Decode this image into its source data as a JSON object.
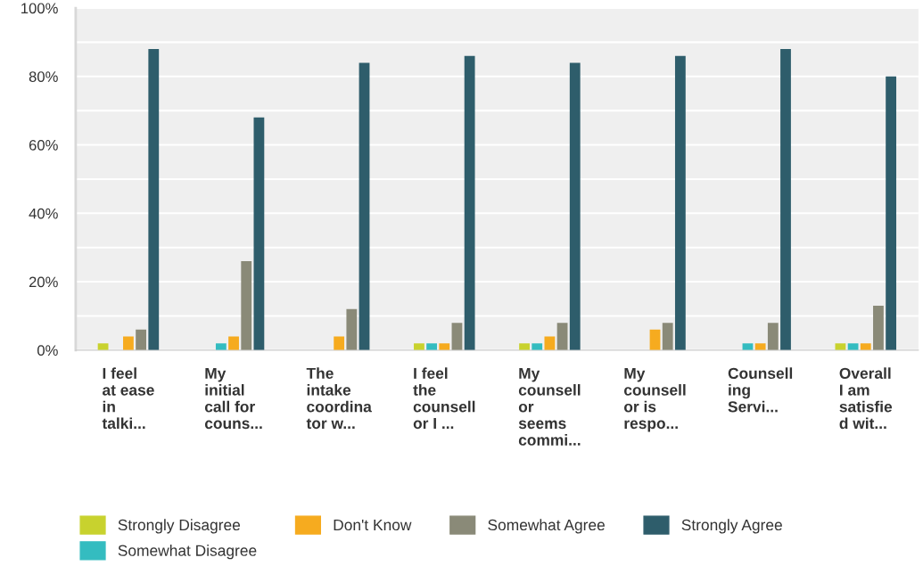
{
  "chart_data": {
    "type": "bar",
    "categories": [
      "I feel\nat ease\nin\ntalki...",
      "My\ninitial\ncall for\ncouns...",
      "The\nintake\ncoordina\ntor w...",
      "I feel\nthe\ncounsell\nor I ...",
      "My\ncounsell\nor\nseems\ncommi...",
      "My\ncounsell\nor is\nrespo...",
      "Counsell\ning\nServi...",
      "Overall\nI am\nsatisfie\nd wit..."
    ],
    "series": [
      {
        "name": "Strongly Disagree",
        "color": "#c8d22e",
        "values": [
          2,
          0,
          0,
          2,
          2,
          0,
          0,
          2
        ]
      },
      {
        "name": "Somewhat Disagree",
        "color": "#34bcc0",
        "values": [
          0,
          2,
          0,
          2,
          2,
          0,
          2,
          2
        ]
      },
      {
        "name": "Don't Know",
        "color": "#f6ab1f",
        "values": [
          4,
          4,
          4,
          2,
          4,
          6,
          2,
          2
        ]
      },
      {
        "name": "Somewhat Agree",
        "color": "#8a8a78",
        "values": [
          6,
          26,
          12,
          8,
          8,
          8,
          8,
          13
        ]
      },
      {
        "name": "Strongly Agree",
        "color": "#2e5d6b",
        "values": [
          88,
          68,
          84,
          86,
          84,
          86,
          88,
          80
        ]
      }
    ],
    "ylim": [
      0,
      100
    ],
    "yticks": [
      {
        "value": 0,
        "label": "0%"
      },
      {
        "value": 10,
        "label": null
      },
      {
        "value": 20,
        "label": "20%"
      },
      {
        "value": 30,
        "label": null
      },
      {
        "value": 40,
        "label": "40%"
      },
      {
        "value": 50,
        "label": null
      },
      {
        "value": 60,
        "label": "60%"
      },
      {
        "value": 70,
        "label": null
      },
      {
        "value": 80,
        "label": "80%"
      },
      {
        "value": 90,
        "label": null
      },
      {
        "value": 100,
        "label": "100%"
      }
    ],
    "grid": "y",
    "legend": "bottom"
  }
}
